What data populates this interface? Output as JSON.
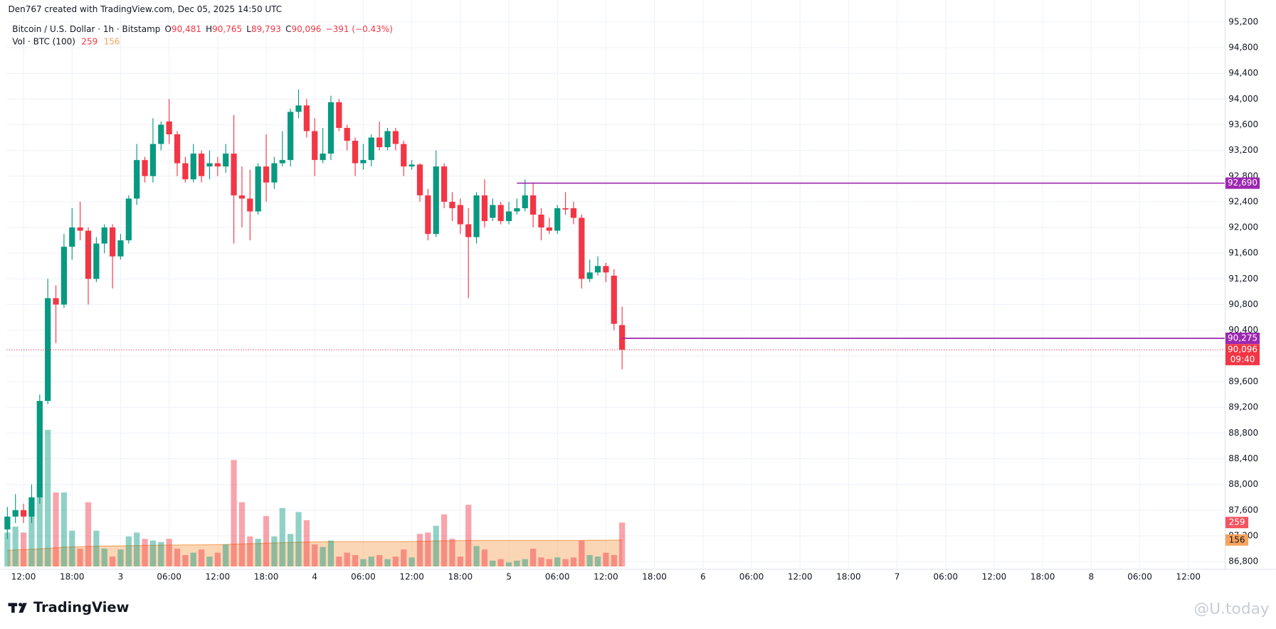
{
  "header": {
    "credit": "Den767 created with TradingView.com, Dec 05, 2025 14:50 UTC"
  },
  "legend": {
    "symbol": "Bitcoin / U.S. Dollar · 1h · Bitstamp",
    "o": "O",
    "open": "90,481",
    "h": "H",
    "high": "90,765",
    "l": "L",
    "low": "89,793",
    "c": "C",
    "close": "90,096",
    "change": "−391 (−0.43%)",
    "volume_title": "Vol · BTC (100)"
  },
  "footer": {
    "brand": "TradingView",
    "watermark": "@U.today"
  },
  "chart_data": {
    "type": "candlestick",
    "up_color": "#089981",
    "down_color": "#f23645",
    "x": [
      10,
      11,
      12,
      13,
      14,
      15,
      16,
      17,
      18,
      19,
      20,
      21,
      22,
      23,
      24,
      25,
      26,
      27,
      28,
      29,
      30,
      31,
      32,
      33,
      34,
      35,
      36,
      37,
      38,
      39,
      40,
      41,
      42,
      43,
      44,
      45,
      46,
      47,
      48,
      49,
      50,
      51,
      52,
      53,
      54,
      55,
      56,
      57,
      58,
      59,
      60,
      61,
      62,
      63,
      64,
      65,
      66,
      67,
      68,
      69,
      70,
      71,
      72,
      73,
      74,
      75,
      76,
      77,
      78,
      79,
      80,
      81,
      82,
      83,
      84,
      85,
      86
    ],
    "open": [
      87300,
      87500,
      87600,
      87500,
      87800,
      89300,
      90900,
      90800,
      91700,
      92000,
      91950,
      91200,
      91750,
      92000,
      91550,
      91800,
      92450,
      93050,
      92800,
      93300,
      93650,
      93450,
      93000,
      92750,
      93150,
      92950,
      93000,
      92950,
      93150,
      92500,
      92450,
      92250,
      92950,
      92700,
      93000,
      93050,
      93800,
      93900,
      93500,
      93050,
      93150,
      93950,
      93550,
      93350,
      93000,
      93050,
      93400,
      93250,
      93500,
      93300,
      92950,
      92980,
      92500,
      91900,
      92950,
      92400,
      92350,
      92050,
      91850,
      92500,
      92150,
      92350,
      92100,
      92250,
      92300,
      92500,
      92200,
      92000,
      91950,
      92300,
      92300,
      92150,
      91200,
      91300,
      91400,
      91250,
      90481
    ],
    "high": [
      87650,
      87850,
      87700,
      88000,
      89400,
      91200,
      91100,
      91900,
      92300,
      92400,
      92000,
      91850,
      92050,
      92050,
      91900,
      92500,
      93300,
      93100,
      93700,
      93650,
      94000,
      93500,
      93100,
      93300,
      93200,
      93200,
      93100,
      93300,
      93750,
      92950,
      92900,
      93000,
      93450,
      93100,
      93500,
      93850,
      94150,
      94000,
      93700,
      93550,
      94050,
      94000,
      93600,
      93400,
      93300,
      93450,
      93650,
      93550,
      93550,
      93350,
      93050,
      93000,
      92600,
      93200,
      93000,
      92550,
      92450,
      92300,
      92550,
      92750,
      92450,
      92400,
      92400,
      92450,
      92750,
      92700,
      92300,
      92150,
      92350,
      92550,
      92400,
      92200,
      91500,
      91550,
      91450,
      91350,
      90765
    ],
    "low": [
      87150,
      87400,
      87400,
      87400,
      87700,
      89250,
      90200,
      90750,
      91500,
      91800,
      90800,
      91150,
      91600,
      91050,
      91500,
      91750,
      92350,
      92700,
      92700,
      93200,
      93300,
      92800,
      92700,
      92700,
      92700,
      92750,
      92800,
      92850,
      91750,
      92000,
      91800,
      92200,
      92400,
      92600,
      92950,
      92950,
      93700,
      93400,
      92800,
      93000,
      93050,
      93500,
      93200,
      92800,
      92900,
      92950,
      93200,
      93200,
      93200,
      92800,
      92900,
      92400,
      91800,
      91850,
      92300,
      92100,
      91900,
      90900,
      91750,
      92000,
      92100,
      92050,
      92050,
      92200,
      92250,
      92000,
      91800,
      91900,
      91900,
      92200,
      92050,
      91050,
      91150,
      91250,
      91150,
      90400,
      89793
    ],
    "close": [
      87500,
      87600,
      87500,
      87800,
      89300,
      90900,
      90800,
      91700,
      92000,
      91950,
      91200,
      91750,
      92000,
      91550,
      91800,
      92450,
      93050,
      92800,
      93300,
      93600,
      93450,
      93000,
      92750,
      93150,
      92800,
      93000,
      92950,
      93150,
      92500,
      92450,
      92250,
      92950,
      92700,
      93000,
      93050,
      93800,
      93900,
      93500,
      93050,
      93150,
      93950,
      93550,
      93350,
      93000,
      93050,
      93400,
      93250,
      93500,
      93300,
      92950,
      92980,
      92500,
      91900,
      92950,
      92400,
      92300,
      92050,
      91850,
      92500,
      92100,
      92350,
      92100,
      92250,
      92300,
      92500,
      92200,
      92000,
      91950,
      92300,
      92280,
      92150,
      91200,
      91300,
      91400,
      91300,
      90500,
      90096
    ],
    "volume": [
      200,
      235,
      200,
      370,
      480,
      806,
      437,
      437,
      211,
      105,
      379,
      211,
      105,
      58,
      100,
      177,
      200,
      163,
      153,
      144,
      163,
      105,
      67,
      81,
      100,
      58,
      81,
      130,
      628,
      379,
      177,
      163,
      297,
      177,
      345,
      192,
      321,
      273,
      130,
      115,
      153,
      58,
      81,
      67,
      43,
      58,
      67,
      43,
      58,
      100,
      53,
      192,
      200,
      240,
      307,
      163,
      58,
      364,
      120,
      100,
      34,
      43,
      24,
      34,
      43,
      105,
      53,
      43,
      53,
      43,
      53,
      153,
      67,
      58,
      81,
      67,
      259
    ],
    "volume_ma": [
      95,
      97,
      99,
      101,
      103,
      106,
      110,
      113,
      115,
      116,
      118,
      119,
      120,
      120,
      121,
      122,
      123,
      124,
      124,
      125,
      126,
      126,
      127,
      127,
      127,
      128,
      128,
      129,
      131,
      133,
      134,
      135,
      137,
      138,
      140,
      141,
      143,
      144,
      145,
      145,
      146,
      146,
      146,
      146,
      146,
      146,
      146,
      146,
      146,
      146,
      147,
      148,
      149,
      150,
      151,
      151,
      152,
      153,
      153,
      153,
      153,
      153,
      153,
      153,
      153,
      153,
      153,
      153,
      153,
      153,
      153,
      153,
      154,
      154,
      154,
      155,
      156
    ],
    "volume_color": "#f7a35c",
    "volume_ylim": [
      0,
      3343
    ],
    "xlim": [
      9.9,
      160.5
    ],
    "xticks": [
      {
        "value": 12,
        "label": "12:00"
      },
      {
        "value": 18,
        "label": "18:00"
      },
      {
        "value": 24,
        "label": "3"
      },
      {
        "value": 30,
        "label": "06:00"
      },
      {
        "value": 36,
        "label": "12:00"
      },
      {
        "value": 42,
        "label": "18:00"
      },
      {
        "value": 48,
        "label": "4"
      },
      {
        "value": 54,
        "label": "06:00"
      },
      {
        "value": 60,
        "label": "12:00"
      },
      {
        "value": 66,
        "label": "18:00"
      },
      {
        "value": 72,
        "label": "5"
      },
      {
        "value": 78,
        "label": "06:00"
      },
      {
        "value": 84,
        "label": "12:00"
      },
      {
        "value": 90,
        "label": "18:00"
      },
      {
        "value": 96,
        "label": "6"
      },
      {
        "value": 102,
        "label": "06:00"
      },
      {
        "value": 108,
        "label": "12:00"
      },
      {
        "value": 114,
        "label": "18:00"
      },
      {
        "value": 120,
        "label": "7"
      },
      {
        "value": 126,
        "label": "06:00"
      },
      {
        "value": 132,
        "label": "12:00"
      },
      {
        "value": 138,
        "label": "18:00"
      },
      {
        "value": 144,
        "label": "8"
      },
      {
        "value": 150,
        "label": "06:00"
      },
      {
        "value": 156,
        "label": "12:00"
      }
    ],
    "ylim": [
      86686,
      95541
    ],
    "yticks": [
      {
        "value": 86800,
        "label": "86,800"
      },
      {
        "value": 87200,
        "label": "87,200"
      },
      {
        "value": 87600,
        "label": "87,600"
      },
      {
        "value": 88000,
        "label": "88,000"
      },
      {
        "value": 88400,
        "label": "88,400"
      },
      {
        "value": 88800,
        "label": "88,800"
      },
      {
        "value": 89200,
        "label": "89,200"
      },
      {
        "value": 89600,
        "label": "89,600"
      },
      {
        "value": 90000,
        "label": "90,000"
      },
      {
        "value": 90400,
        "label": "90,400"
      },
      {
        "value": 90800,
        "label": "90,800"
      },
      {
        "value": 91200,
        "label": "91,200"
      },
      {
        "value": 91600,
        "label": "91,600"
      },
      {
        "value": 92000,
        "label": "92,000"
      },
      {
        "value": 92400,
        "label": "92,400"
      },
      {
        "value": 92800,
        "label": "92,800"
      },
      {
        "value": 93200,
        "label": "93,200"
      },
      {
        "value": 93600,
        "label": "93,600"
      },
      {
        "value": 94000,
        "label": "94,000"
      },
      {
        "value": 94400,
        "label": "94,400"
      },
      {
        "value": 94800,
        "label": "94,800"
      },
      {
        "value": 95200,
        "label": "95,200"
      }
    ],
    "grid": true,
    "levels": [
      {
        "value": 92690,
        "label": "92,690",
        "from_x": 73,
        "color": "#9c27b0"
      },
      {
        "value": 90275,
        "label": "90,275",
        "from_x": 86,
        "color": "#9c27b0"
      }
    ],
    "last_price": {
      "value": 90096,
      "label": "90,096",
      "countdown": "09:40"
    }
  }
}
